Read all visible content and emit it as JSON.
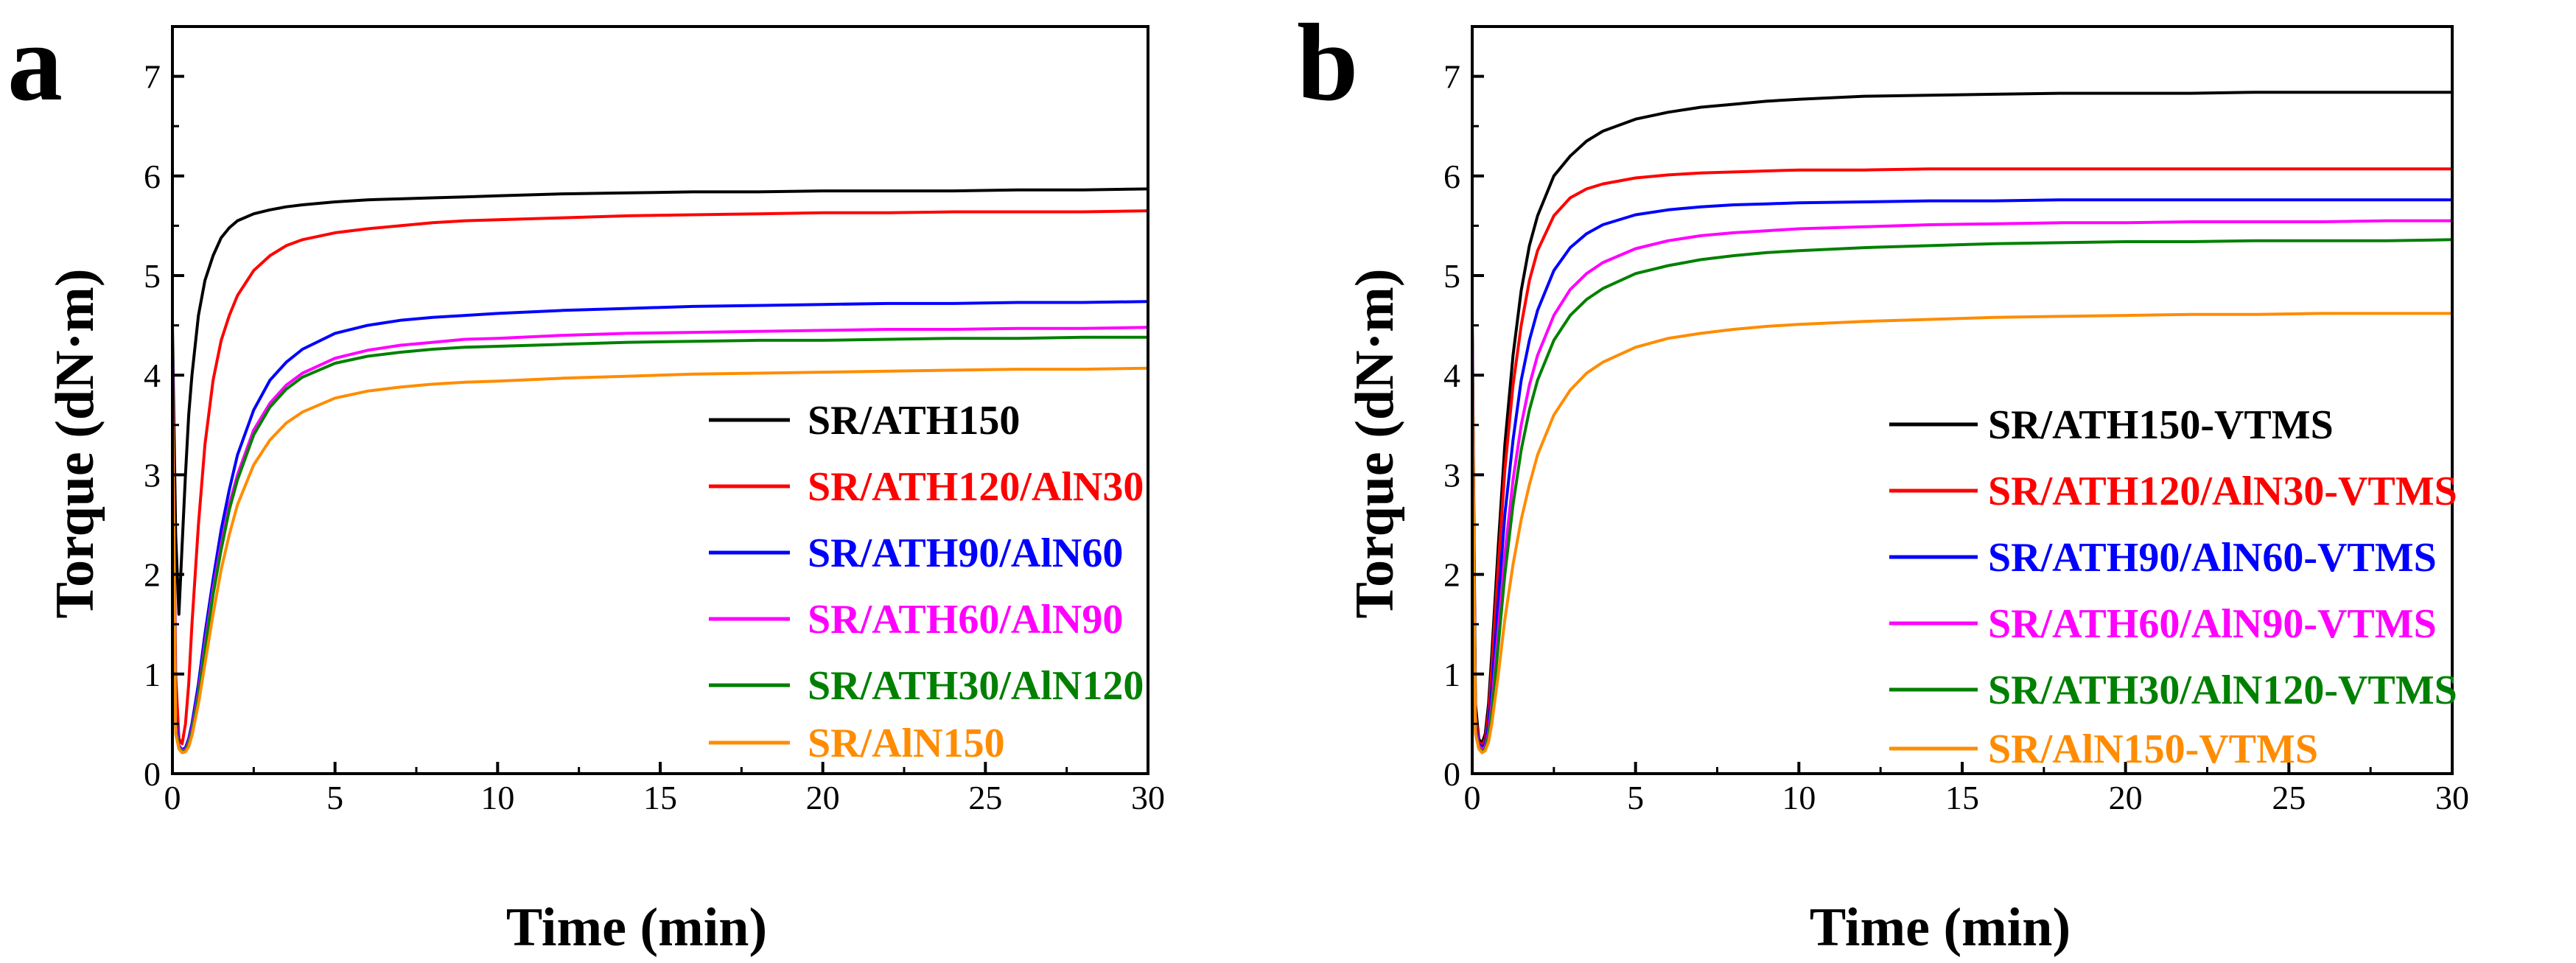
{
  "chart_data": [
    {
      "type": "line",
      "panel_label": "a",
      "xlabel": "Time (min)",
      "ylabel": "Torque (dN·m)",
      "xlim": [
        0,
        30
      ],
      "ylim": [
        0,
        7.5
      ],
      "xticks": [
        "0",
        "5",
        "10",
        "15",
        "20",
        "25",
        "30"
      ],
      "yticks": [
        "0",
        "1",
        "2",
        "3",
        "4",
        "5",
        "6",
        "7"
      ],
      "grid": false,
      "legend_position": "bottom-right",
      "x": [
        0,
        0.1,
        0.2,
        0.3,
        0.4,
        0.5,
        0.6,
        0.8,
        1.0,
        1.25,
        1.5,
        1.75,
        2.0,
        2.5,
        3.0,
        3.5,
        4.0,
        5.0,
        6.0,
        7.0,
        8.0,
        9.0,
        10.0,
        12.0,
        14.0,
        16.0,
        18.0,
        20.0,
        22.0,
        24.0,
        26.0,
        28.0,
        30.0
      ],
      "series": [
        {
          "name": "SR/ATH150",
          "color": "#000000",
          "values": [
            4.5,
            2.4,
            1.6,
            2.3,
            3.0,
            3.6,
            4.0,
            4.6,
            4.95,
            5.2,
            5.38,
            5.48,
            5.55,
            5.62,
            5.66,
            5.69,
            5.71,
            5.74,
            5.76,
            5.77,
            5.78,
            5.79,
            5.8,
            5.82,
            5.83,
            5.84,
            5.84,
            5.85,
            5.85,
            5.85,
            5.86,
            5.86,
            5.87
          ]
        },
        {
          "name": "SR/ATH120/AlN30",
          "color": "#ff0000",
          "values": [
            4.0,
            1.0,
            0.35,
            0.3,
            0.5,
            0.9,
            1.5,
            2.5,
            3.3,
            3.95,
            4.35,
            4.6,
            4.8,
            5.05,
            5.2,
            5.3,
            5.36,
            5.43,
            5.47,
            5.5,
            5.53,
            5.55,
            5.56,
            5.58,
            5.6,
            5.61,
            5.62,
            5.63,
            5.63,
            5.64,
            5.64,
            5.64,
            5.65
          ]
        },
        {
          "name": "SR/ATH90/AlN60",
          "color": "#0000ff",
          "values": [
            4.2,
            0.6,
            0.28,
            0.24,
            0.26,
            0.35,
            0.5,
            0.9,
            1.4,
            1.95,
            2.45,
            2.85,
            3.2,
            3.65,
            3.95,
            4.13,
            4.26,
            4.42,
            4.5,
            4.55,
            4.58,
            4.6,
            4.62,
            4.65,
            4.67,
            4.69,
            4.7,
            4.71,
            4.72,
            4.72,
            4.73,
            4.73,
            4.74
          ]
        },
        {
          "name": "SR/ATH60/AlN90",
          "color": "#ff00ff",
          "values": [
            4.2,
            0.5,
            0.27,
            0.23,
            0.24,
            0.32,
            0.45,
            0.82,
            1.3,
            1.85,
            2.3,
            2.7,
            3.0,
            3.45,
            3.72,
            3.9,
            4.02,
            4.17,
            4.25,
            4.3,
            4.33,
            4.36,
            4.37,
            4.4,
            4.42,
            4.43,
            4.44,
            4.45,
            4.46,
            4.46,
            4.47,
            4.47,
            4.48
          ]
        },
        {
          "name": "SR/ATH30/AlN120",
          "color": "#008000",
          "values": [
            4.0,
            0.45,
            0.26,
            0.22,
            0.23,
            0.3,
            0.42,
            0.78,
            1.25,
            1.8,
            2.25,
            2.65,
            2.95,
            3.4,
            3.68,
            3.86,
            3.98,
            4.12,
            4.19,
            4.23,
            4.26,
            4.28,
            4.29,
            4.31,
            4.33,
            4.34,
            4.35,
            4.35,
            4.36,
            4.37,
            4.37,
            4.38,
            4.38
          ]
        },
        {
          "name": "SR/AlN150",
          "color": "#ff8c00",
          "values": [
            3.9,
            0.4,
            0.25,
            0.21,
            0.22,
            0.27,
            0.38,
            0.7,
            1.1,
            1.6,
            2.05,
            2.4,
            2.7,
            3.1,
            3.35,
            3.52,
            3.63,
            3.77,
            3.84,
            3.88,
            3.91,
            3.93,
            3.94,
            3.97,
            3.99,
            4.01,
            4.02,
            4.03,
            4.04,
            4.05,
            4.06,
            4.06,
            4.07
          ]
        }
      ]
    },
    {
      "type": "line",
      "panel_label": "b",
      "xlabel": "Time (min)",
      "ylabel": "Torque (dN·m)",
      "xlim": [
        0,
        30
      ],
      "ylim": [
        0,
        7.5
      ],
      "xticks": [
        "0",
        "5",
        "10",
        "15",
        "20",
        "25",
        "30"
      ],
      "yticks": [
        "0",
        "1",
        "2",
        "3",
        "4",
        "5",
        "6",
        "7"
      ],
      "grid": false,
      "legend_position": "bottom-right",
      "x": [
        0,
        0.1,
        0.2,
        0.3,
        0.4,
        0.5,
        0.6,
        0.8,
        1.0,
        1.25,
        1.5,
        1.75,
        2.0,
        2.5,
        3.0,
        3.5,
        4.0,
        5.0,
        6.0,
        7.0,
        8.0,
        9.0,
        10.0,
        12.0,
        14.0,
        16.0,
        18.0,
        20.0,
        22.0,
        24.0,
        26.0,
        28.0,
        30.0
      ],
      "series": [
        {
          "name": "SR/ATH150-VTMS",
          "color": "#000000",
          "values": [
            4.6,
            0.7,
            0.35,
            0.3,
            0.4,
            0.7,
            1.2,
            2.3,
            3.3,
            4.2,
            4.85,
            5.3,
            5.6,
            6.0,
            6.2,
            6.35,
            6.45,
            6.57,
            6.64,
            6.69,
            6.72,
            6.75,
            6.77,
            6.8,
            6.81,
            6.82,
            6.83,
            6.83,
            6.83,
            6.84,
            6.84,
            6.84,
            6.84
          ]
        },
        {
          "name": "SR/ATH120/AlN30-VTMS",
          "color": "#ff0000",
          "values": [
            4.5,
            0.6,
            0.32,
            0.28,
            0.35,
            0.6,
            1.05,
            2.1,
            3.05,
            3.9,
            4.5,
            4.95,
            5.25,
            5.6,
            5.78,
            5.87,
            5.92,
            5.98,
            6.01,
            6.03,
            6.04,
            6.05,
            6.06,
            6.06,
            6.07,
            6.07,
            6.07,
            6.07,
            6.07,
            6.07,
            6.07,
            6.07,
            6.07
          ]
        },
        {
          "name": "SR/ATH90/AlN60-VTMS",
          "color": "#0000ff",
          "values": [
            4.4,
            0.5,
            0.3,
            0.26,
            0.3,
            0.5,
            0.85,
            1.75,
            2.6,
            3.35,
            3.95,
            4.35,
            4.65,
            5.05,
            5.28,
            5.42,
            5.51,
            5.61,
            5.66,
            5.69,
            5.71,
            5.72,
            5.73,
            5.74,
            5.75,
            5.75,
            5.76,
            5.76,
            5.76,
            5.76,
            5.76,
            5.76,
            5.76
          ]
        },
        {
          "name": "SR/ATH60/AlN90-VTMS",
          "color": "#ff00ff",
          "values": [
            4.3,
            0.45,
            0.28,
            0.24,
            0.27,
            0.42,
            0.7,
            1.45,
            2.2,
            2.95,
            3.5,
            3.9,
            4.2,
            4.6,
            4.86,
            5.02,
            5.13,
            5.27,
            5.35,
            5.4,
            5.43,
            5.45,
            5.47,
            5.49,
            5.51,
            5.52,
            5.53,
            5.53,
            5.54,
            5.54,
            5.54,
            5.55,
            5.55
          ]
        },
        {
          "name": "SR/ATH30/AlN120-VTMS",
          "color": "#008000",
          "values": [
            4.2,
            0.42,
            0.26,
            0.22,
            0.25,
            0.38,
            0.62,
            1.3,
            2.0,
            2.7,
            3.25,
            3.65,
            3.95,
            4.35,
            4.6,
            4.76,
            4.87,
            5.02,
            5.1,
            5.16,
            5.2,
            5.23,
            5.25,
            5.28,
            5.3,
            5.32,
            5.33,
            5.34,
            5.34,
            5.35,
            5.35,
            5.35,
            5.36
          ]
        },
        {
          "name": "SR/AlN150-VTMS",
          "color": "#ff8c00",
          "values": [
            4.0,
            0.4,
            0.25,
            0.21,
            0.23,
            0.32,
            0.5,
            1.0,
            1.55,
            2.1,
            2.55,
            2.9,
            3.2,
            3.6,
            3.85,
            4.02,
            4.13,
            4.28,
            4.37,
            4.42,
            4.46,
            4.49,
            4.51,
            4.54,
            4.56,
            4.58,
            4.59,
            4.6,
            4.61,
            4.61,
            4.62,
            4.62,
            4.62
          ]
        }
      ]
    }
  ]
}
